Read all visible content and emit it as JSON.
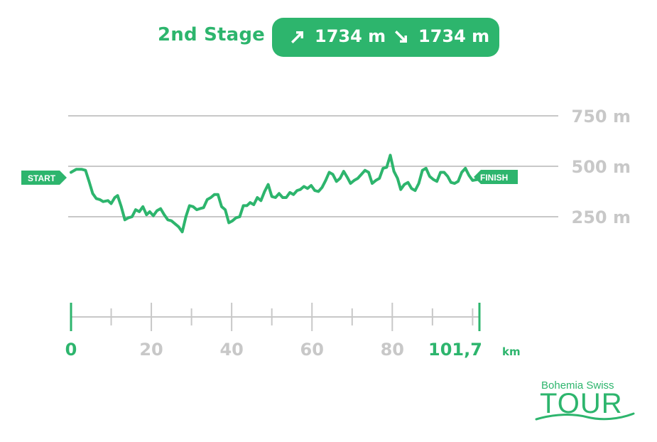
{
  "header": {
    "stage": "2nd Stage",
    "ascent": "1734 m",
    "descent": "1734 m",
    "ascent_icon": "arrow-up-right-icon",
    "descent_icon": "arrow-down-right-icon"
  },
  "markers": {
    "start": "START",
    "finish": "FINISH"
  },
  "logo": {
    "line1": "Bohemia Swiss",
    "line2": "TOUR"
  },
  "colors": {
    "accent": "#2db56d",
    "grid": "#c8c8c8",
    "tick_label": "#c8c8c8"
  },
  "chart_data": {
    "type": "line",
    "title": "",
    "xlabel": "",
    "ylabel": "",
    "x_unit": "km",
    "xlim": [
      0,
      101.7
    ],
    "ylim": [
      0,
      900
    ],
    "y_gridlines": [
      250,
      500,
      750
    ],
    "y_tick_labels": [
      "250 m",
      "500 m",
      "750 m"
    ],
    "x_major_ticks": [
      0,
      20,
      40,
      60,
      80,
      101.7
    ],
    "x_minor_ticks": [
      10,
      30,
      50,
      70,
      90,
      100
    ],
    "x_tick_labels": [
      "0",
      "20",
      "40",
      "60",
      "80",
      "101,7"
    ],
    "x_highlight_labels": [
      "0",
      "101,7"
    ],
    "grid": true,
    "legend": "none",
    "series": [
      {
        "x": [
          0,
          1.3,
          2.7,
          3.6,
          4.5,
          5.4,
          6.3,
          7.2,
          8,
          9.2,
          10,
          10.9,
          11.6,
          12.5,
          13.4,
          14.3,
          15.2,
          16.1,
          17,
          17.9,
          18.8,
          19.6,
          20.5,
          21.4,
          22.3,
          23.2,
          24.1,
          25,
          26.8,
          27.7,
          28.6,
          29.5,
          30.4,
          31.3,
          32.1,
          33,
          33.9,
          34.8,
          35.7,
          36.6,
          37.5,
          38.4,
          39.3,
          40.2,
          41.1,
          42,
          42.9,
          43.8,
          44.6,
          45.5,
          46.4,
          47.3,
          48.2,
          49.1,
          50,
          50.9,
          51.8,
          52.7,
          53.6,
          54.5,
          55.4,
          56.3,
          57.1,
          58,
          58.9,
          59.8,
          60.7,
          61.6,
          62.5,
          63.4,
          64.3,
          65.2,
          66.1,
          67,
          67.9,
          68.8,
          69.6,
          70.5,
          71.4,
          72.3,
          73.2,
          74.1,
          75,
          75.9,
          76.8,
          77.7,
          78.6,
          79.5,
          80.4,
          81.3,
          82.1,
          83,
          83.9,
          84.8,
          85.7,
          86.6,
          87.5,
          88.4,
          89.3,
          90.2,
          91.1,
          92,
          92.9,
          93.8,
          94.6,
          95.5,
          96.4,
          97.3,
          98.2,
          99.1,
          100,
          101.3
        ],
        "y": [
          470,
          485,
          485,
          480,
          425,
          365,
          340,
          335,
          325,
          330,
          315,
          345,
          355,
          300,
          235,
          245,
          250,
          285,
          275,
          300,
          260,
          275,
          255,
          280,
          290,
          260,
          235,
          230,
          200,
          175,
          250,
          305,
          300,
          285,
          290,
          295,
          335,
          345,
          360,
          360,
          300,
          285,
          220,
          230,
          245,
          250,
          305,
          305,
          320,
          310,
          345,
          330,
          375,
          410,
          350,
          345,
          365,
          345,
          345,
          370,
          360,
          380,
          385,
          400,
          390,
          405,
          380,
          375,
          395,
          430,
          470,
          460,
          425,
          440,
          475,
          445,
          415,
          430,
          440,
          460,
          480,
          470,
          415,
          430,
          440,
          490,
          495,
          555,
          475,
          440,
          385,
          410,
          420,
          390,
          380,
          415,
          480,
          490,
          450,
          435,
          425,
          470,
          470,
          450,
          420,
          415,
          425,
          470,
          490,
          455,
          430,
          435
        ]
      }
    ]
  }
}
